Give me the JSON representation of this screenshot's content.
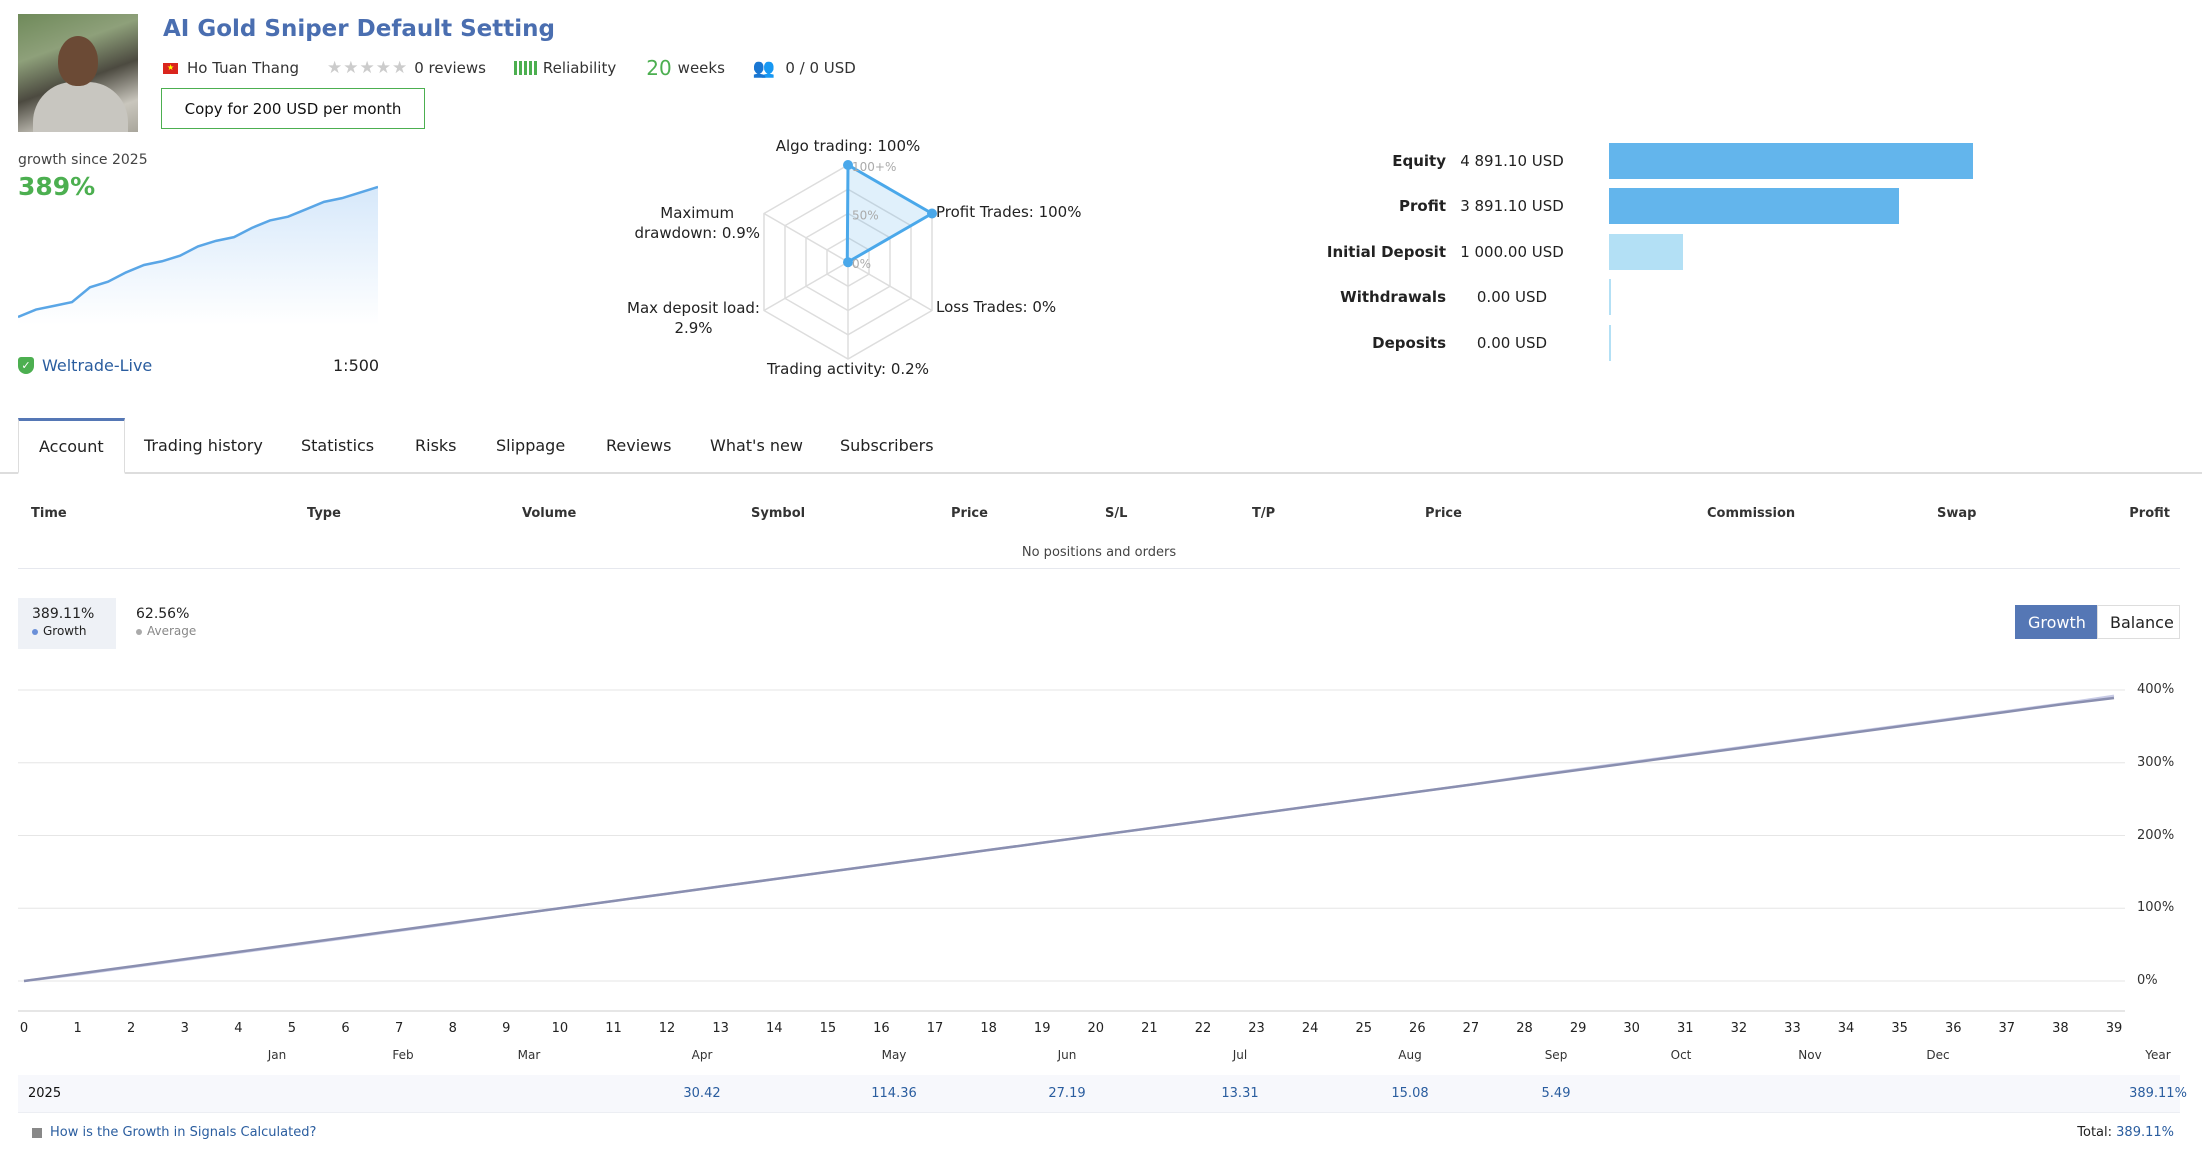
{
  "header": {
    "title": "AI Gold Sniper Default Setting",
    "author": "Ho Tuan Thang",
    "reviews": "0 reviews",
    "reliability": "Reliability",
    "weeks_num": "20",
    "weeks_label": "weeks",
    "subscribers": "0 / 0 USD",
    "copy_button": "Copy for 200 USD per month"
  },
  "growth_summary": {
    "label": "growth since 2025",
    "value": "389%",
    "broker": "Weltrade-Live",
    "leverage": "1:500",
    "sparkline": [
      0,
      4,
      6,
      8,
      16,
      19,
      24,
      28,
      30,
      33,
      38,
      41,
      43,
      48,
      52,
      54,
      58,
      62,
      64,
      67,
      70
    ]
  },
  "radar": {
    "labels": {
      "algo": "Algo trading: 100%",
      "profit": "Profit Trades: 100%",
      "loss": "Loss Trades: 0%",
      "activity": "Trading activity: 0.2%",
      "deposit_load_1": "Max deposit load:",
      "deposit_load_2": "2.9%",
      "drawdown_1": "Maximum",
      "drawdown_2": "drawdown: 0.9%"
    },
    "ring_labels": [
      "100+%",
      "50%",
      "0%"
    ],
    "values": [
      100,
      100,
      0,
      0.2,
      2.9,
      0.9
    ]
  },
  "balance": {
    "rows": [
      {
        "label": "Equity",
        "value": "4 891.10 USD",
        "amount": 4891.1,
        "color": "#63b5ec"
      },
      {
        "label": "Profit",
        "value": "3 891.10 USD",
        "amount": 3891.1,
        "color": "#63b5ec"
      },
      {
        "label": "Initial Deposit",
        "value": "1 000.00 USD",
        "amount": 1000,
        "color": "#b3e0f5"
      },
      {
        "label": "Withdrawals",
        "value": "0.00 USD",
        "amount": 0,
        "color": "#b3e0f5"
      },
      {
        "label": "Deposits",
        "value": "0.00 USD",
        "amount": 0,
        "color": "#b3e0f5"
      }
    ]
  },
  "tabs": [
    "Account",
    "Trading history",
    "Statistics",
    "Risks",
    "Slippage",
    "Reviews",
    "What's new",
    "Subscribers"
  ],
  "positions": {
    "columns": [
      "Time",
      "Type",
      "Volume",
      "Symbol",
      "Price",
      "S/L",
      "T/P",
      "Price",
      "Commission",
      "Swap",
      "Profit"
    ],
    "empty": "No positions and orders"
  },
  "stats": {
    "growth_value": "389.11%",
    "growth_label": "Growth",
    "average_value": "62.56%",
    "average_label": "Average"
  },
  "toggle": {
    "growth": "Growth",
    "balance": "Balance"
  },
  "chart_data": {
    "type": "line",
    "x": [
      0,
      1,
      2,
      3,
      4,
      5,
      6,
      7,
      8,
      9,
      10,
      11,
      12,
      13,
      14,
      15,
      16,
      17,
      18,
      19,
      20,
      21,
      22,
      23,
      24,
      25,
      26,
      27,
      28,
      29,
      30,
      31,
      32,
      33,
      34,
      35,
      36,
      37,
      38,
      39
    ],
    "series": [
      {
        "name": "Growth",
        "color": "#8a8fb0",
        "values": [
          0,
          10,
          20,
          30,
          40,
          50,
          60,
          70,
          80,
          90,
          100,
          110,
          120,
          130,
          140,
          150,
          160,
          170,
          180,
          190,
          200,
          210,
          220,
          230,
          240,
          250,
          260,
          270,
          280,
          290,
          300,
          310,
          320,
          330,
          340,
          350,
          360,
          370,
          380,
          389
        ]
      },
      {
        "name": "Average",
        "color": "#c8cbe6",
        "values": [
          0,
          9,
          19,
          29,
          39,
          49,
          59,
          69,
          79,
          90,
          100,
          110,
          120,
          130,
          140,
          150,
          160,
          170,
          180,
          190,
          200,
          210,
          220,
          230,
          240,
          250,
          260,
          270,
          281,
          291,
          301,
          311,
          321,
          331,
          341,
          351,
          361,
          371,
          381,
          392
        ]
      }
    ],
    "y_ticks": [
      "400%",
      "300%",
      "200%",
      "100%",
      "0%"
    ],
    "ylim": [
      0,
      400
    ],
    "x_ticks": [
      "0",
      "1",
      "2",
      "3",
      "4",
      "5",
      "6",
      "7",
      "8",
      "9",
      "10",
      "11",
      "12",
      "13",
      "14",
      "15",
      "16",
      "17",
      "18",
      "19",
      "20",
      "21",
      "22",
      "23",
      "24",
      "25",
      "26",
      "27",
      "28",
      "29",
      "30",
      "31",
      "32",
      "33",
      "34",
      "35",
      "36",
      "37",
      "38",
      "39"
    ]
  },
  "monthly": {
    "months": [
      "Jan",
      "Feb",
      "Mar",
      "Apr",
      "May",
      "Jun",
      "Jul",
      "Aug",
      "Sep",
      "Oct",
      "Nov",
      "Dec",
      "Year"
    ],
    "year": "2025",
    "values": [
      "",
      "",
      "",
      "30.42",
      "114.36",
      "27.19",
      "13.31",
      "15.08",
      "5.49",
      "",
      "",
      "",
      "389.11%"
    ]
  },
  "footer": {
    "link": "How is the Growth in Signals Calculated?",
    "total_label": "Total:",
    "total_value": "389.11%"
  }
}
